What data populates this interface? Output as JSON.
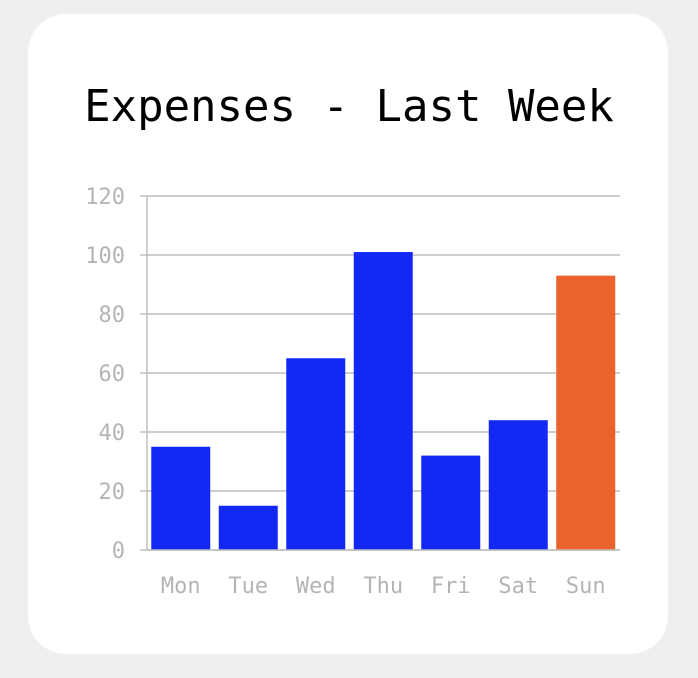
{
  "chart_data": {
    "type": "bar",
    "title": "Expenses - Last Week",
    "categories": [
      "Mon",
      "Tue",
      "Wed",
      "Thu",
      "Fri",
      "Sat",
      "Sun"
    ],
    "values": [
      35,
      15,
      65,
      101,
      32,
      44,
      93
    ],
    "highlight_index": 6,
    "colors": {
      "default_bar": "#1328f5",
      "highlight_bar": "#ea622c",
      "grid": "#bdbdbd",
      "axis": "#bdbdbd",
      "tick_text": "#b4b4b4"
    },
    "ylim": [
      0,
      120
    ],
    "yticks": [
      0,
      20,
      40,
      60,
      80,
      100,
      120
    ],
    "grid": true,
    "legend": "none"
  }
}
